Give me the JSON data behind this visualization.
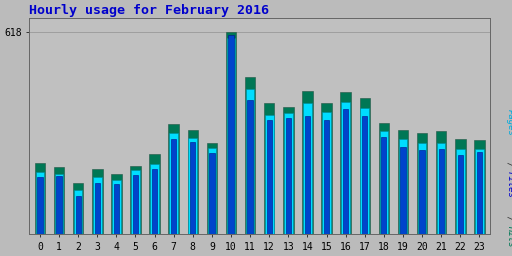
{
  "title": "Hourly usage for February 2016",
  "title_color": "#0000cc",
  "title_fontsize": 9.5,
  "hours": [
    0,
    1,
    2,
    3,
    4,
    5,
    6,
    7,
    8,
    9,
    10,
    11,
    12,
    13,
    14,
    15,
    16,
    17,
    18,
    19,
    20,
    21,
    22,
    23
  ],
  "pages": [
    190,
    185,
    135,
    175,
    165,
    195,
    215,
    310,
    295,
    265,
    600,
    445,
    365,
    370,
    400,
    375,
    405,
    385,
    315,
    290,
    280,
    280,
    260,
    260
  ],
  "files": [
    175,
    178,
    118,
    155,
    152,
    180,
    198,
    292,
    282,
    248,
    608,
    410,
    348,
    355,
    362,
    350,
    382,
    362,
    296,
    268,
    256,
    262,
    242,
    250
  ],
  "hits": [
    218,
    205,
    158,
    200,
    185,
    210,
    245,
    338,
    318,
    280,
    618,
    482,
    400,
    390,
    438,
    400,
    435,
    415,
    340,
    318,
    310,
    314,
    292,
    288
  ],
  "ymax": 660,
  "ytick_label": "618",
  "ytick_val": 618,
  "pages_color": "#00ddff",
  "files_color": "#0044cc",
  "hits_color": "#007755",
  "bg_color": "#bbbbbb",
  "plot_bg_color": "#c0c0c0",
  "bar_width": 0.55,
  "grid_color": "#999999"
}
